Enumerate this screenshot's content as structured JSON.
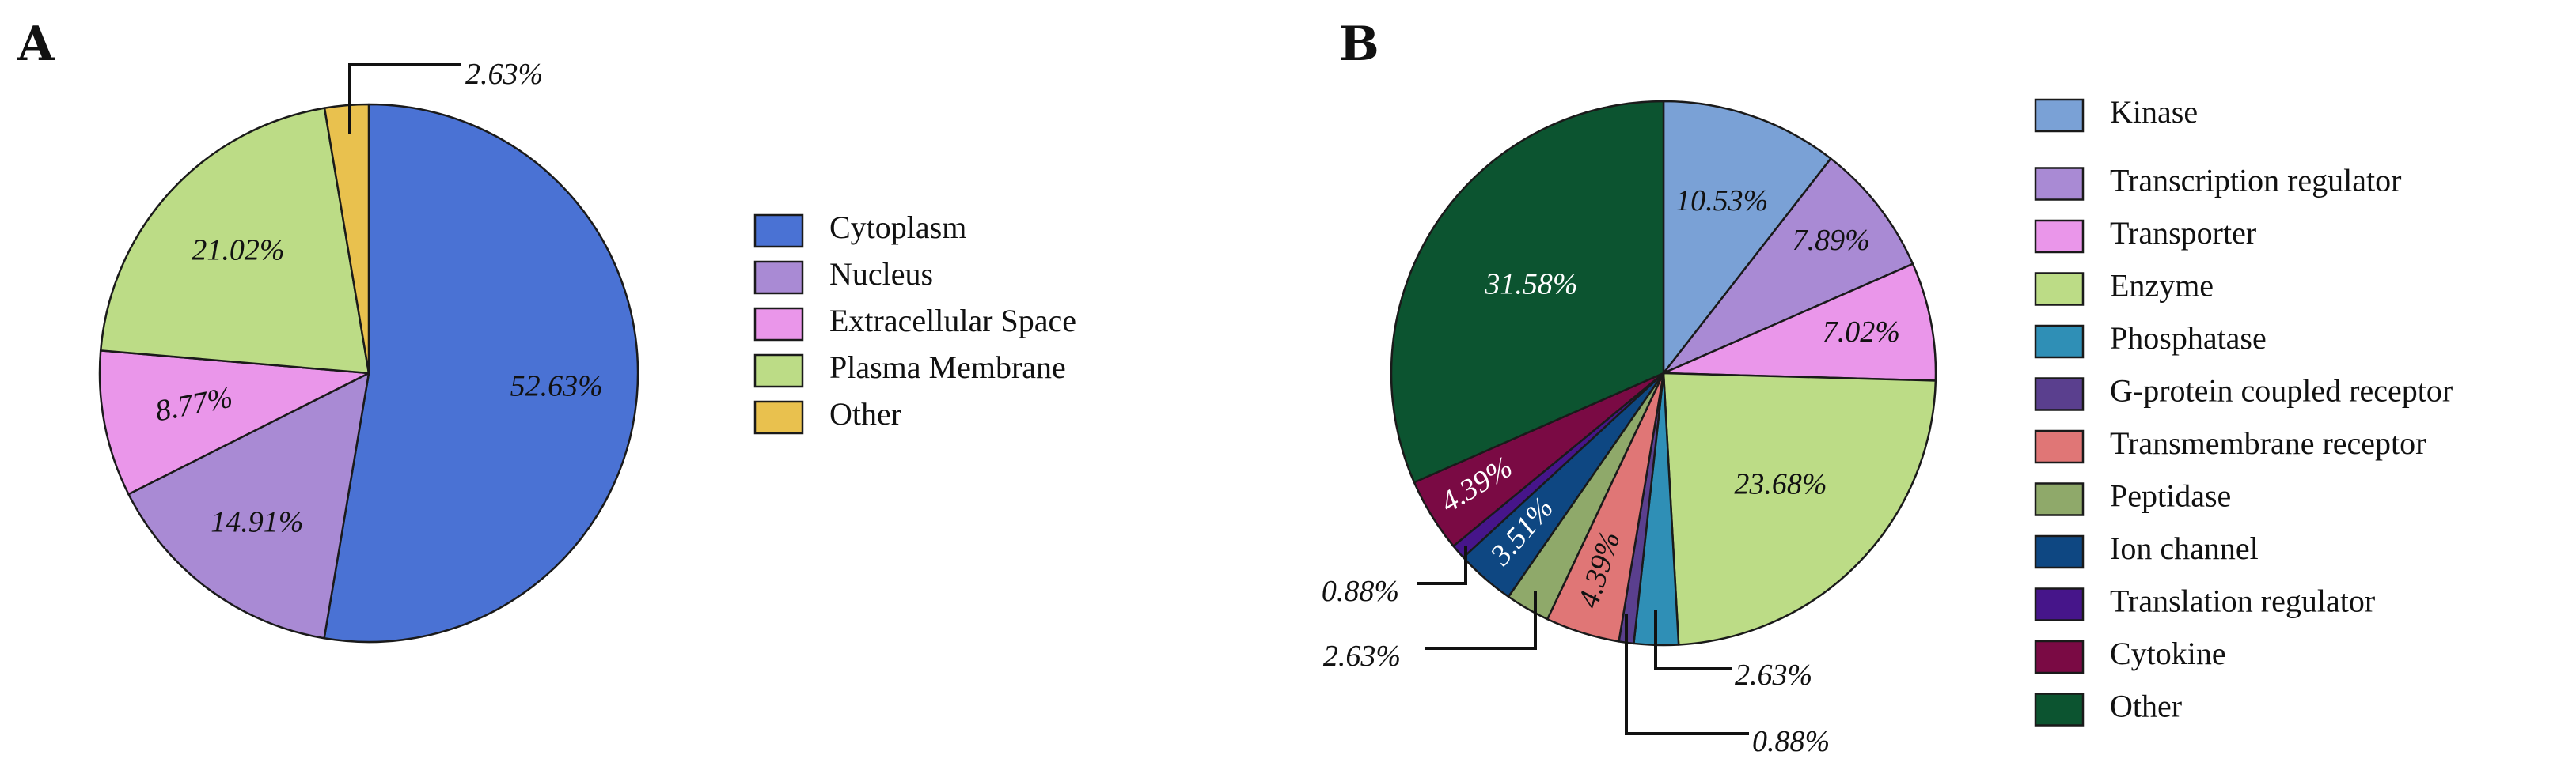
{
  "panels": {
    "a": {
      "letter": "A"
    },
    "b": {
      "letter": "B"
    }
  },
  "chart_data": [
    {
      "type": "pie",
      "panel": "A",
      "start": "top",
      "direction": "clockwise",
      "legend_position": "right",
      "slices": [
        {
          "label": "Cytoplasm",
          "value": 52.63,
          "display": "52.63%",
          "color": "#4a72d4"
        },
        {
          "label": "Nucleus",
          "value": 14.91,
          "display": "14.91%",
          "color": "#a98ad4"
        },
        {
          "label": "Extracellular Space",
          "value": 8.77,
          "display": "8.77%",
          "color": "#ea96ea"
        },
        {
          "label": "Plasma Membrane",
          "value": 21.02,
          "display": "21.02%",
          "color": "#bcdc86"
        },
        {
          "label": "Other",
          "value": 2.63,
          "display": "2.63%",
          "color": "#e9c14e"
        }
      ]
    },
    {
      "type": "pie",
      "panel": "B",
      "start": "top",
      "direction": "clockwise",
      "legend_position": "right",
      "slices": [
        {
          "label": "Kinase",
          "value": 10.53,
          "display": "10.53%",
          "color": "#7aa1d6"
        },
        {
          "label": "Transcription regulator",
          "value": 7.89,
          "display": "7.89%",
          "color": "#a98ad4"
        },
        {
          "label": "Transporter",
          "value": 7.02,
          "display": "7.02%",
          "color": "#ea96ea"
        },
        {
          "label": "Enzyme",
          "value": 23.68,
          "display": "23.68%",
          "color": "#bcdc86"
        },
        {
          "label": "Phosphatase",
          "value": 2.63,
          "display": "2.63%",
          "color": "#2f8fb6"
        },
        {
          "label": "G-protein coupled receptor",
          "value": 0.88,
          "display": "0.88%",
          "color": "#5a3f8e"
        },
        {
          "label": "Transmembrane receptor",
          "value": 4.39,
          "display": "4.39%",
          "color": "#e07676"
        },
        {
          "label": "Peptidase",
          "value": 2.63,
          "display": "2.63%",
          "color": "#8fa96a"
        },
        {
          "label": "Ion channel",
          "value": 3.51,
          "display": "3.51%",
          "color": "#0e4782"
        },
        {
          "label": "Translation regulator",
          "value": 0.88,
          "display": "0.88%",
          "color": "#46158a"
        },
        {
          "label": "Cytokine",
          "value": 4.39,
          "display": "4.39%",
          "color": "#7a0a44"
        },
        {
          "label": "Other",
          "value": 31.58,
          "display": "31.58%",
          "color": "#0c5430"
        }
      ]
    }
  ]
}
